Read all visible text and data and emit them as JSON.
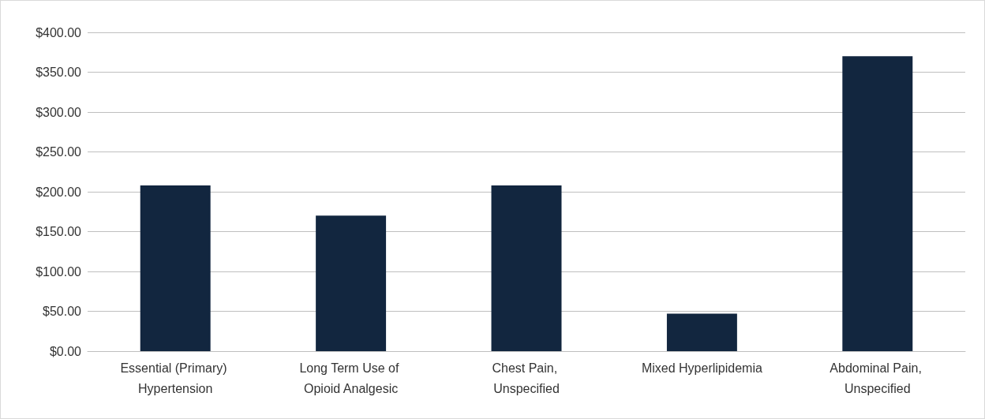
{
  "chart_data": {
    "type": "bar",
    "categories": [
      "Essential (Primary) Hypertension",
      "Long Term Use of Opioid Analgesic",
      "Chest Pain, Unspecified",
      "Mixed Hyperlipidemia",
      "Abdominal Pain, Unspecified"
    ],
    "values": [
      208,
      170,
      208,
      47,
      370
    ],
    "color": "#12263f",
    "ylim": [
      0,
      400
    ],
    "yticks": [
      {
        "value": 0,
        "label": "$0.00"
      },
      {
        "value": 50,
        "label": "$50.00"
      },
      {
        "value": 100,
        "label": "$100.00"
      },
      {
        "value": 150,
        "label": "$150.00"
      },
      {
        "value": 200,
        "label": "$200.00"
      },
      {
        "value": 250,
        "label": "$250.00"
      },
      {
        "value": 300,
        "label": "$300.00"
      },
      {
        "value": 350,
        "label": "$350.00"
      },
      {
        "value": 400,
        "label": "$400.00"
      }
    ],
    "grid": "y"
  }
}
